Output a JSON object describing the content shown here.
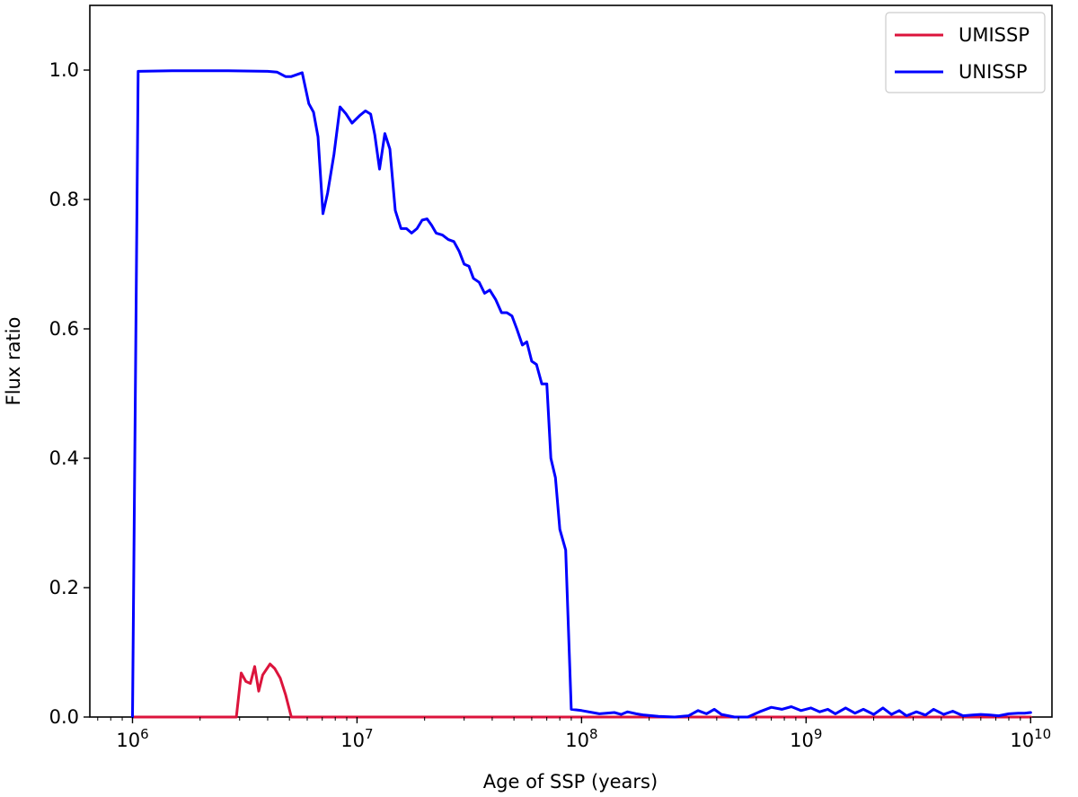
{
  "chart_data": {
    "type": "line",
    "title": "",
    "xlabel": "Age of SSP (years)",
    "ylabel": "Flux ratio",
    "xscale": "log",
    "xlim": [
      1000000.0,
      10000000000.0
    ],
    "ylim": [
      0,
      1.1
    ],
    "grid": false,
    "legend_position": "top-right",
    "x_ticks": [
      {
        "base": "10",
        "exp": "6"
      },
      {
        "base": "10",
        "exp": "7"
      },
      {
        "base": "10",
        "exp": "8"
      },
      {
        "base": "10",
        "exp": "9"
      },
      {
        "base": "10",
        "exp": "10"
      }
    ],
    "y_ticks": [
      "0.0",
      "0.2",
      "0.4",
      "0.6",
      "0.8",
      "1.0"
    ],
    "series": [
      {
        "name": "UMISSP",
        "color": "#dc143c",
        "points": [
          [
            1000000,
            0
          ],
          [
            2900000,
            0
          ],
          [
            3050000,
            0.068
          ],
          [
            3200000,
            0.055
          ],
          [
            3350000,
            0.052
          ],
          [
            3500000,
            0.078
          ],
          [
            3650000,
            0.04
          ],
          [
            3800000,
            0.065
          ],
          [
            4100000,
            0.082
          ],
          [
            4300000,
            0.075
          ],
          [
            4550000,
            0.06
          ],
          [
            4800000,
            0.035
          ],
          [
            5100000,
            0
          ],
          [
            10000000000,
            0
          ]
        ]
      },
      {
        "name": "UNISSP",
        "color": "#0000ff",
        "points": [
          [
            1000000,
            0
          ],
          [
            1060000,
            0.998
          ],
          [
            1500000,
            0.999
          ],
          [
            2500000,
            0.999
          ],
          [
            4000000,
            0.998
          ],
          [
            4400000,
            0.997
          ],
          [
            4800000,
            0.99
          ],
          [
            5100000,
            0.99
          ],
          [
            5700000,
            0.996
          ],
          [
            6100000,
            0.948
          ],
          [
            6400000,
            0.935
          ],
          [
            6700000,
            0.897
          ],
          [
            7050000,
            0.778
          ],
          [
            7400000,
            0.81
          ],
          [
            7900000,
            0.87
          ],
          [
            8400000,
            0.943
          ],
          [
            8900000,
            0.933
          ],
          [
            9500000,
            0.918
          ],
          [
            10300000,
            0.93
          ],
          [
            10900000,
            0.937
          ],
          [
            11500000,
            0.932
          ],
          [
            12000000,
            0.9
          ],
          [
            12600000,
            0.847
          ],
          [
            13300000,
            0.902
          ],
          [
            14000000,
            0.878
          ],
          [
            14800000,
            0.783
          ],
          [
            15700000,
            0.755
          ],
          [
            16600000,
            0.755
          ],
          [
            17500000,
            0.748
          ],
          [
            18500000,
            0.755
          ],
          [
            19500000,
            0.768
          ],
          [
            20500000,
            0.77
          ],
          [
            21500000,
            0.76
          ],
          [
            22500000,
            0.748
          ],
          [
            24000000,
            0.745
          ],
          [
            25500000,
            0.738
          ],
          [
            27000000,
            0.735
          ],
          [
            28500000,
            0.72
          ],
          [
            30000000,
            0.7
          ],
          [
            31500000,
            0.697
          ],
          [
            33000000,
            0.678
          ],
          [
            35000000,
            0.672
          ],
          [
            37000000,
            0.655
          ],
          [
            39000000,
            0.66
          ],
          [
            41500000,
            0.645
          ],
          [
            44000000,
            0.625
          ],
          [
            46500000,
            0.625
          ],
          [
            49000000,
            0.62
          ],
          [
            51500000,
            0.6
          ],
          [
            54500000,
            0.575
          ],
          [
            57000000,
            0.58
          ],
          [
            60000000,
            0.55
          ],
          [
            63000000,
            0.545
          ],
          [
            66500000,
            0.515
          ],
          [
            70000000,
            0.515
          ],
          [
            73000000,
            0.4
          ],
          [
            76500000,
            0.37
          ],
          [
            80000000,
            0.29
          ],
          [
            85000000,
            0.258
          ],
          [
            90000000,
            0.012
          ],
          [
            100000000,
            0.01
          ],
          [
            120000000,
            0.005
          ],
          [
            140000000,
            0.007
          ],
          [
            150000000,
            0.004
          ],
          [
            160000000,
            0.008
          ],
          [
            175000000,
            0.005
          ],
          [
            190000000,
            0.003
          ],
          [
            220000000,
            0.001
          ],
          [
            260000000,
            0
          ],
          [
            300000000,
            0.002
          ],
          [
            330000000,
            0.01
          ],
          [
            360000000,
            0.005
          ],
          [
            390000000,
            0.012
          ],
          [
            420000000,
            0.004
          ],
          [
            480000000,
            0
          ],
          [
            550000000,
            0
          ],
          [
            620000000,
            0.008
          ],
          [
            700000000,
            0.015
          ],
          [
            780000000,
            0.012
          ],
          [
            860000000,
            0.016
          ],
          [
            950000000,
            0.01
          ],
          [
            1050000000,
            0.014
          ],
          [
            1150000000,
            0.008
          ],
          [
            1250000000,
            0.012
          ],
          [
            1350000000,
            0.005
          ],
          [
            1500000000,
            0.014
          ],
          [
            1650000000,
            0.006
          ],
          [
            1800000000,
            0.012
          ],
          [
            2000000000,
            0.004
          ],
          [
            2200000000,
            0.014
          ],
          [
            2400000000,
            0.004
          ],
          [
            2600000000,
            0.01
          ],
          [
            2800000000,
            0.002
          ],
          [
            3100000000,
            0.008
          ],
          [
            3400000000,
            0.003
          ],
          [
            3700000000,
            0.012
          ],
          [
            4100000000,
            0.004
          ],
          [
            4500000000,
            0.009
          ],
          [
            5000000000,
            0.002
          ],
          [
            5500000000,
            0.003
          ],
          [
            6000000000,
            0.004
          ],
          [
            6600000000,
            0.003
          ],
          [
            7200000000,
            0.002
          ],
          [
            8000000000,
            0.005
          ],
          [
            8800000000,
            0.006
          ],
          [
            9400000000,
            0.006
          ],
          [
            10000000000,
            0.007
          ]
        ]
      }
    ]
  }
}
